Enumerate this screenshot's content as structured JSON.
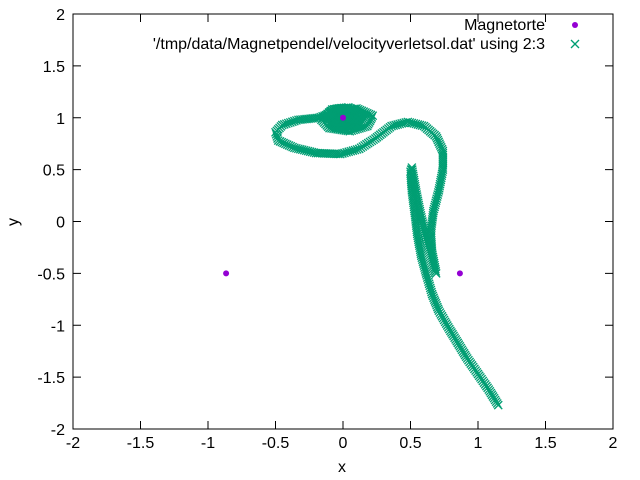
{
  "chart_data": {
    "type": "scatter",
    "title": "",
    "xlabel": "x",
    "ylabel": "y",
    "xlim": [
      -2,
      2
    ],
    "ylim": [
      -2,
      2
    ],
    "xticks": [
      -2,
      -1.5,
      -1,
      -0.5,
      0,
      0.5,
      1,
      1.5,
      2
    ],
    "yticks": [
      -2,
      -1.5,
      -1,
      -0.5,
      0,
      0.5,
      1,
      1.5,
      2
    ],
    "xtick_labels": [
      "-2",
      "-1.5",
      "-1",
      "-0.5",
      "0",
      "0.5",
      "1",
      "1.5",
      "2"
    ],
    "ytick_labels": [
      "-2",
      "-1.5",
      "-1",
      "-0.5",
      "0",
      "0.5",
      "1",
      "1.5",
      "2"
    ],
    "grid": false,
    "legend_position": "top-right",
    "series": [
      {
        "name": "Magnetorte",
        "marker": "filled-circle",
        "color": "#9400d3",
        "points": [
          [
            -0.866,
            -0.5
          ],
          [
            0.866,
            -0.5
          ],
          [
            0,
            1
          ]
        ]
      },
      {
        "name": "'/tmp/data/Magnetpendel/velocityverletsol.dat' using 2:3",
        "marker": "x",
        "color": "#009e73",
        "points": [
          [
            1.15,
            -1.77
          ],
          [
            1.08,
            -1.62
          ],
          [
            1.0,
            -1.47
          ],
          [
            0.92,
            -1.32
          ],
          [
            0.85,
            -1.17
          ],
          [
            0.78,
            -1.02
          ],
          [
            0.71,
            -0.86
          ],
          [
            0.66,
            -0.7
          ],
          [
            0.62,
            -0.52
          ],
          [
            0.58,
            -0.33
          ],
          [
            0.55,
            -0.12
          ],
          [
            0.53,
            0.1
          ],
          [
            0.51,
            0.3
          ],
          [
            0.5,
            0.48
          ],
          [
            0.51,
            0.52
          ],
          [
            0.54,
            0.3
          ],
          [
            0.57,
            0.1
          ],
          [
            0.61,
            -0.12
          ],
          [
            0.66,
            -0.35
          ],
          [
            0.69,
            -0.5
          ],
          [
            0.66,
            -0.3
          ],
          [
            0.65,
            -0.1
          ],
          [
            0.67,
            0.1
          ],
          [
            0.71,
            0.3
          ],
          [
            0.74,
            0.5
          ],
          [
            0.74,
            0.68
          ],
          [
            0.69,
            0.82
          ],
          [
            0.6,
            0.92
          ],
          [
            0.48,
            0.96
          ],
          [
            0.36,
            0.92
          ],
          [
            0.24,
            0.8
          ],
          [
            0.12,
            0.7
          ],
          [
            -0.02,
            0.65
          ],
          [
            -0.2,
            0.66
          ],
          [
            -0.36,
            0.71
          ],
          [
            -0.48,
            0.78
          ],
          [
            -0.5,
            0.86
          ],
          [
            -0.45,
            0.93
          ],
          [
            -0.33,
            0.98
          ],
          [
            -0.18,
            1.0
          ],
          [
            -0.05,
            1.06
          ],
          [
            0.1,
            1.09
          ],
          [
            0.22,
            1.02
          ],
          [
            0.18,
            0.92
          ],
          [
            0.05,
            0.87
          ],
          [
            -0.1,
            0.9
          ],
          [
            -0.16,
            0.98
          ],
          [
            -0.08,
            1.08
          ],
          [
            0.04,
            1.1
          ],
          [
            0.16,
            1.04
          ],
          [
            0.14,
            0.95
          ],
          [
            0.02,
            0.92
          ],
          [
            -0.08,
            0.96
          ],
          [
            -0.04,
            1.05
          ],
          [
            0.06,
            1.04
          ],
          [
            0.08,
            0.98
          ],
          [
            0.0,
            0.97
          ],
          [
            -0.02,
            1.01
          ],
          [
            0.03,
            1.02
          ],
          [
            0.02,
            0.99
          ]
        ]
      }
    ]
  }
}
